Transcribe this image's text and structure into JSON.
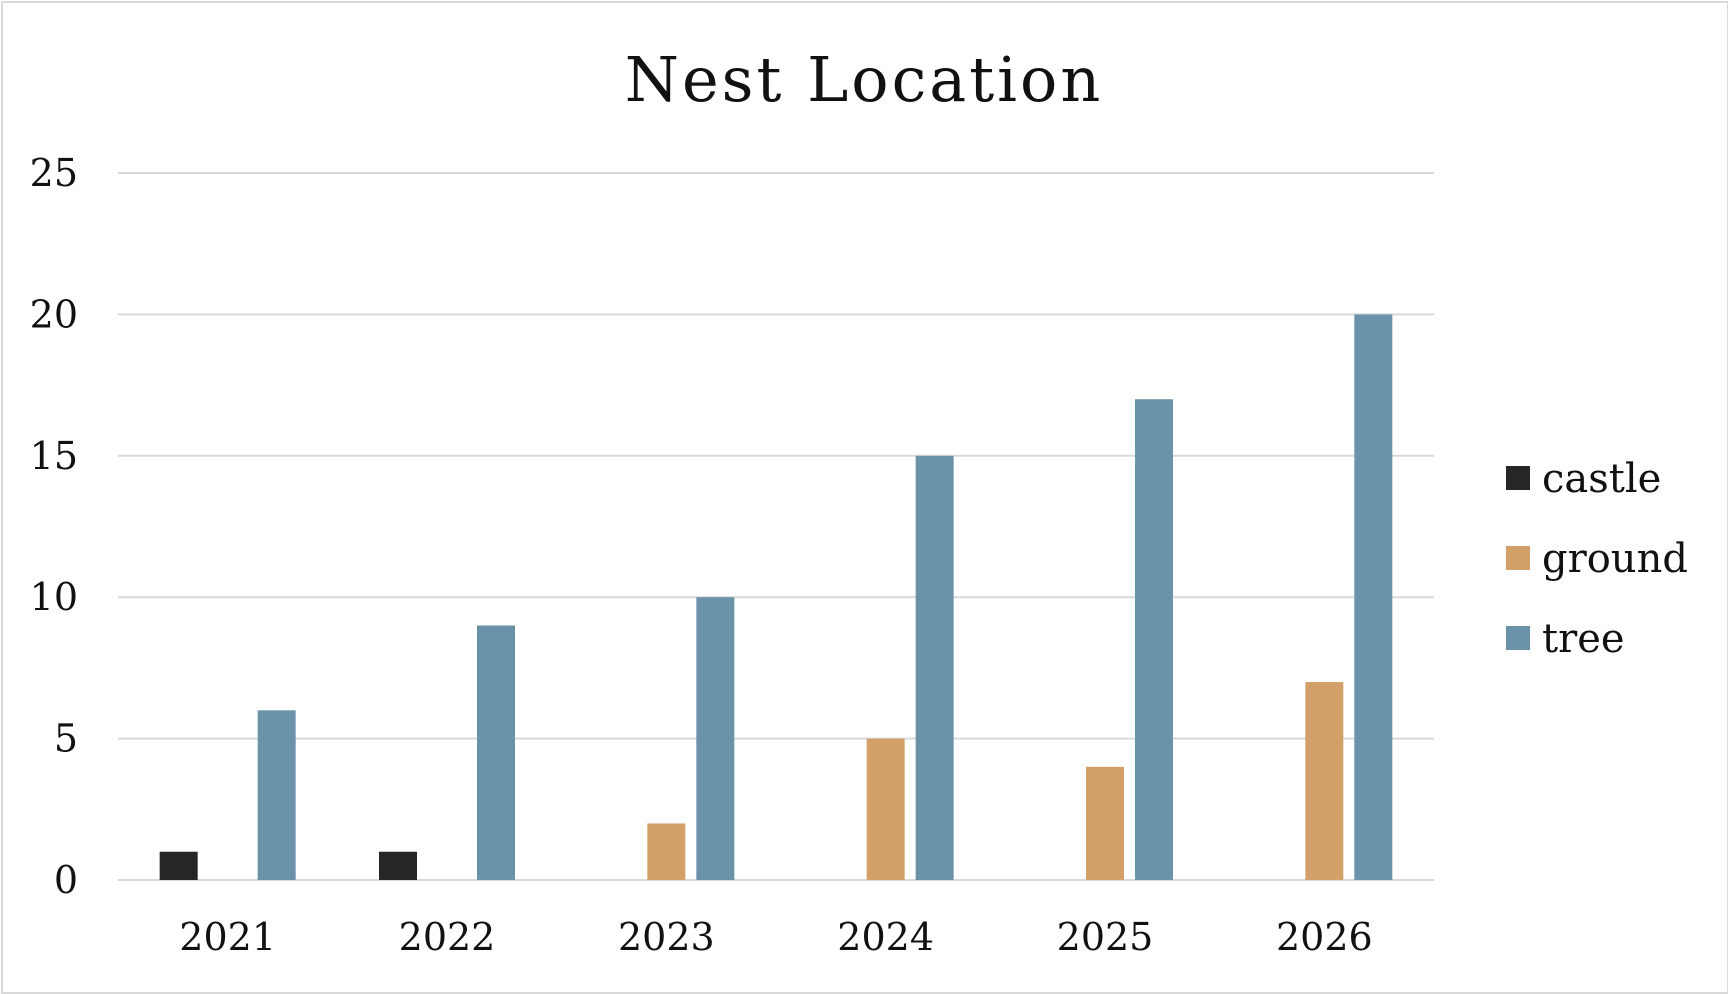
{
  "chart_data": {
    "type": "bar",
    "title": "Nest Location",
    "xlabel": "",
    "ylabel": "",
    "categories": [
      "2021",
      "2022",
      "2023",
      "2024",
      "2025",
      "2026"
    ],
    "series": [
      {
        "name": "castle",
        "color": "#262626",
        "values": [
          1,
          1,
          0,
          0,
          0,
          0
        ]
      },
      {
        "name": "ground",
        "color": "#d4a06a",
        "values": [
          0,
          0,
          2,
          5,
          4,
          7
        ]
      },
      {
        "name": "tree",
        "color": "#6a93aa",
        "values": [
          6,
          9,
          10,
          15,
          17,
          20
        ]
      }
    ],
    "ylim": [
      0,
      25
    ],
    "yticks": [
      "0",
      "5",
      "10",
      "15",
      "20",
      "25"
    ],
    "grid": true,
    "legend_position": "right"
  }
}
